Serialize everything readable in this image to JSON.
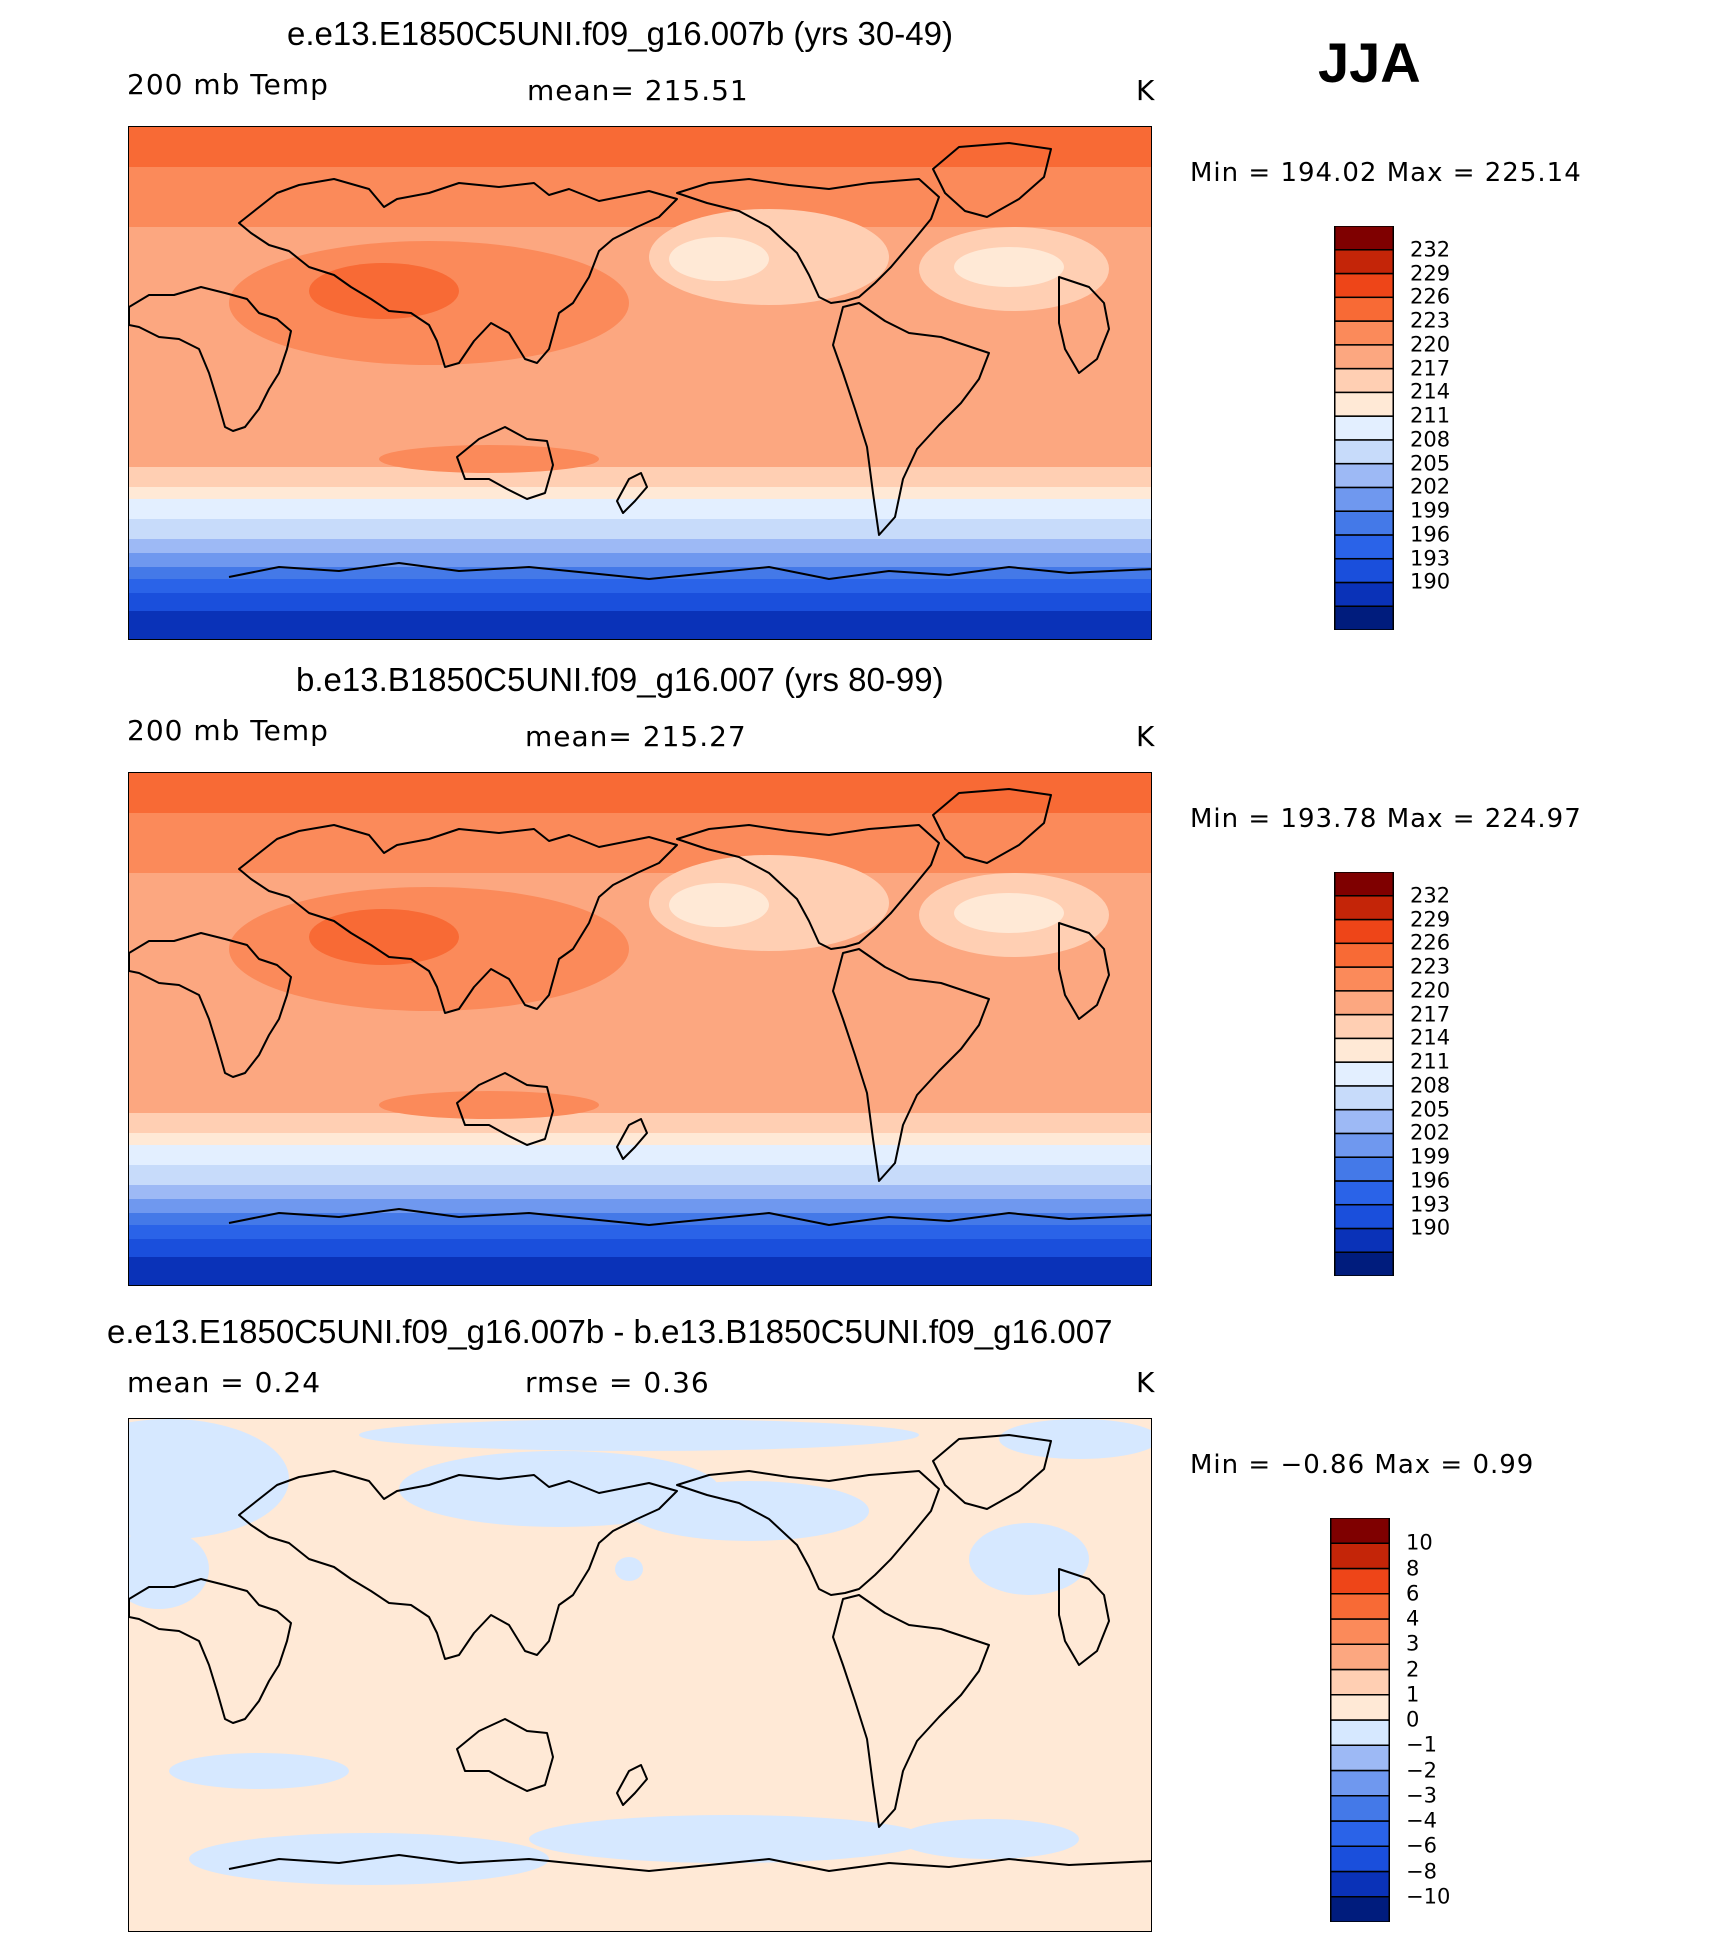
{
  "season": "JJA",
  "units": "K",
  "colors": {
    "abs": [
      "#001c7d",
      "#0a32b8",
      "#1a4fdc",
      "#2a63e8",
      "#4479e8",
      "#6f98ef",
      "#9db9f5",
      "#c7dbfa",
      "#e3efff",
      "#ffe9d6",
      "#ffcfb3",
      "#fca780",
      "#fb8a5a",
      "#f86a35",
      "#ee4518",
      "#c42508",
      "#7f0000"
    ],
    "diff": [
      "#001c7d",
      "#0a32b8",
      "#1a4fdc",
      "#2a63e8",
      "#4479e8",
      "#6f98ef",
      "#9db9f5",
      "#d6e8ff",
      "#ffe9d6",
      "#ffcfb3",
      "#fca780",
      "#fb8a5a",
      "#f86a35",
      "#ee4518",
      "#c42508",
      "#7f0000"
    ]
  },
  "panels": [
    {
      "title": "e.e13.E1850C5UNI.f09_g16.007b (yrs 30-49)",
      "variable": "200 mb Temp",
      "stat": "mean=  215.51",
      "units": "K",
      "min_label": "Min  =  194.02",
      "max_label": "Max  =  225.14"
    },
    {
      "title": "b.e13.B1850C5UNI.f09_g16.007 (yrs 80-99)",
      "variable": "200 mb Temp",
      "stat": "mean=  215.27",
      "units": "K",
      "min_label": "Min  =  193.78",
      "max_label": "Max  =  224.97"
    },
    {
      "title": "e.e13.E1850C5UNI.f09_g16.007b - b.e13.B1850C5UNI.f09_g16.007",
      "variable": "mean  =     0.24",
      "stat": "rmse  =     0.36",
      "units": "K",
      "min_label": "Min  =    −0.86",
      "max_label": "Max  =     0.99"
    }
  ],
  "colorbars": [
    {
      "levels": [
        "232",
        "229",
        "226",
        "223",
        "220",
        "217",
        "214",
        "211",
        "208",
        "205",
        "202",
        "199",
        "196",
        "193",
        "190"
      ]
    },
    {
      "levels": [
        "232",
        "229",
        "226",
        "223",
        "220",
        "217",
        "214",
        "211",
        "208",
        "205",
        "202",
        "199",
        "196",
        "193",
        "190"
      ]
    },
    {
      "levels": [
        "10",
        "8",
        "6",
        "4",
        "3",
        "2",
        "1",
        "0",
        "−1",
        "−2",
        "−3",
        "−4",
        "−6",
        "−8",
        "−10"
      ]
    }
  ]
}
